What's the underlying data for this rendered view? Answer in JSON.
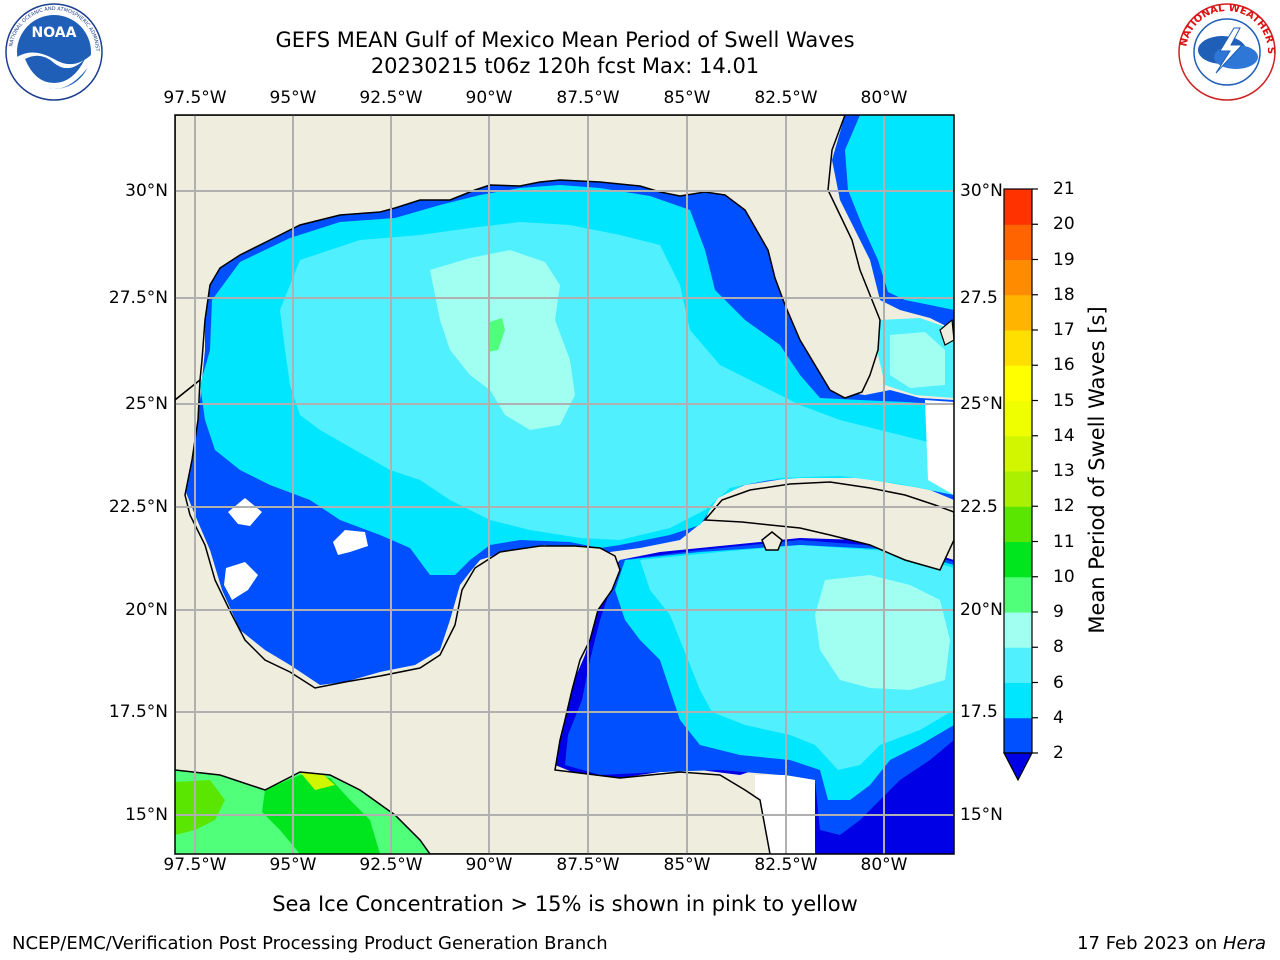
{
  "header": {
    "title_line1": "GEFS MEAN Gulf of Mexico Mean Period of Swell Waves",
    "title_line2": "20230215 t06z 120h fcst   Max: 14.01"
  },
  "logos": {
    "left": {
      "text": "NOAA",
      "ring_text": "NATIONAL OCEANIC AND ATMOSPHERIC ADMINISTRATION · U.S. DEPARTMENT OF COMMERCE"
    },
    "right": {
      "ring_text": "NATIONAL WEATHER SERVICE"
    }
  },
  "map": {
    "lon_ticks": [
      "97.5°W",
      "95°W",
      "92.5°W",
      "90°W",
      "87.5°W",
      "85°W",
      "82.5°W",
      "80°W"
    ],
    "lat_ticks_left": [
      "30°N",
      "27.5°N",
      "25°N",
      "22.5°N",
      "20°N",
      "17.5°N",
      "15°N"
    ],
    "lat_ticks_right": [
      "30°N",
      "27.5",
      "25°N",
      "22.5",
      "20°N",
      "17.5",
      "15°N"
    ],
    "extent": {
      "lon": [
        -98.0,
        -78.2
      ],
      "lat": [
        14.0,
        31.8
      ]
    },
    "colors": {
      "land": "#efedde",
      "grid": "#b0b0b0",
      "coast": "#000000"
    }
  },
  "colorbar": {
    "label": "Mean Period of Swell Waves [s]",
    "ticks": [
      "2",
      "4",
      "6",
      "8",
      "9",
      "10",
      "11",
      "12",
      "13",
      "14",
      "15",
      "16",
      "17",
      "18",
      "19",
      "20",
      "21"
    ],
    "colors": [
      "#0050ff",
      "#00e6ff",
      "#50f0ff",
      "#a0fff0",
      "#50ff7a",
      "#00e61e",
      "#5ae600",
      "#aaf000",
      "#d2f500",
      "#f0ff00",
      "#ffff00",
      "#ffdf00",
      "#ffb400",
      "#ff8c00",
      "#ff6400",
      "#ff3200"
    ],
    "under_color": "#0000e6"
  },
  "footer": {
    "note": "Sea Ice Concentration > 15% is shown in pink to yellow",
    "credit": "NCEP/EMC/Verification Post Processing Product Generation Branch",
    "date_prefix": "17 Feb 2023 on ",
    "date_system": "Hera"
  }
}
